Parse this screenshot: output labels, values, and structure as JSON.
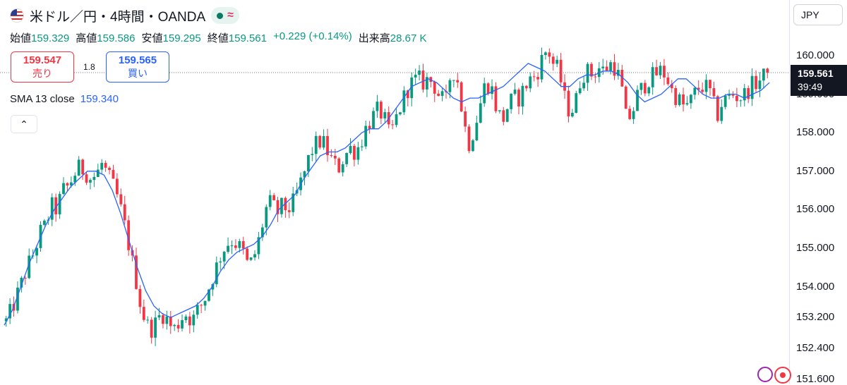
{
  "header": {
    "title": "米ドル／円・4時間・OANDA",
    "flag_icon": "us-flag-icon",
    "market_status_icon": "market-open-dot-icon",
    "approx_icon": "approximation-icon"
  },
  "ohlc": {
    "open_label": "始値",
    "open": "159.329",
    "high_label": "高値",
    "high": "159.586",
    "low_label": "安値",
    "low": "159.295",
    "close_label": "終値",
    "close": "159.561",
    "change": "+0.229 (+0.14%)",
    "volume_label": "出来高",
    "volume": "28.67 K"
  },
  "trade": {
    "sell_price": "159.547",
    "sell_label": "売り",
    "spread": "1.8",
    "buy_price": "159.565",
    "buy_label": "買い"
  },
  "indicator": {
    "label": "SMA 13 close",
    "value": "159.340"
  },
  "collapse_icon": "⌃",
  "axis": {
    "currency": "JPY",
    "current_price": "159.561",
    "countdown": "39:49"
  },
  "colors": {
    "up": "#089981",
    "down": "#f23645",
    "sma": "#2962ff"
  },
  "chart_data": {
    "type": "candlestick",
    "y_ticks": [
      "160.000",
      "159.000",
      "158.000",
      "157.000",
      "156.000",
      "155.000",
      "154.000",
      "153.200",
      "152.400",
      "151.600"
    ],
    "ylim": [
      151.6,
      160.55
    ],
    "grid": false,
    "current_price": 159.561,
    "series": [
      {
        "values": [
          153.1,
          153.4,
          153.8,
          154.2,
          154.6,
          154.9,
          155.4,
          155.6,
          156.1,
          156.0,
          156.5,
          156.6,
          156.9,
          157.1,
          157.0,
          156.8,
          156.9,
          157.2,
          156.9,
          156.6,
          156.2,
          155.6,
          154.9,
          154.2,
          153.4,
          153.0,
          152.9,
          153.2,
          153.3,
          153.0,
          152.9,
          153.2,
          153.3,
          153.1,
          153.4,
          153.6,
          154.0,
          154.4,
          154.8,
          155.1,
          155.2,
          155.1,
          154.9,
          154.5,
          154.8,
          155.3,
          156.0,
          156.2,
          155.9,
          156.1,
          156.0,
          156.2,
          156.6,
          157.0,
          157.5,
          157.7,
          157.8,
          157.5,
          157.2,
          157.1,
          157.4,
          157.6,
          157.5,
          157.8,
          158.2,
          158.4,
          158.6,
          158.4,
          157.9,
          158.3,
          158.7,
          159.1,
          159.3,
          159.4,
          159.3,
          159.4,
          159.2,
          158.9,
          158.8,
          159.7,
          159.4,
          158.4,
          157.7,
          158.1,
          158.7,
          159.3,
          159.2,
          158.6,
          158.3,
          158.7,
          158.9,
          158.9,
          159.2,
          159.4,
          159.5,
          159.9,
          160.2,
          159.8,
          159.6,
          158.9,
          158.5,
          158.8,
          159.5,
          159.6,
          159.5,
          159.7,
          159.6,
          159.8,
          159.7,
          159.3,
          158.3,
          158.5,
          159.0,
          159.2,
          159.4,
          159.5,
          159.6,
          159.5,
          159.1,
          158.9,
          158.7,
          158.7,
          159.0,
          159.2,
          159.2,
          159.0,
          158.4,
          158.8,
          158.9,
          159.0,
          158.9,
          159.0,
          159.2,
          159.3,
          159.4,
          159.56
        ]
      },
      {
        "name": "SMA 13 close",
        "values": [
          153.0,
          153.4,
          154.0,
          154.6,
          155.1,
          155.6,
          156.0,
          156.3,
          156.6,
          156.8,
          157.0,
          157.0,
          156.9,
          156.5,
          155.9,
          155.2,
          154.5,
          153.9,
          153.5,
          153.3,
          153.2,
          153.3,
          153.4,
          153.5,
          153.7,
          154.0,
          154.4,
          154.7,
          154.9,
          155.0,
          155.1,
          155.3,
          155.6,
          156.0,
          156.2,
          156.4,
          156.8,
          157.1,
          157.4,
          157.5,
          157.5,
          157.6,
          157.8,
          158.0,
          158.1,
          158.1,
          158.3,
          158.6,
          158.9,
          159.2,
          159.3,
          159.4,
          159.3,
          159.1,
          158.9,
          158.8,
          158.9,
          158.9,
          159.0,
          159.1,
          159.2,
          159.4,
          159.6,
          159.8,
          159.7,
          159.6,
          159.4,
          159.2,
          159.2,
          159.4,
          159.5,
          159.5,
          159.6,
          159.6,
          159.5,
          159.3,
          159.0,
          158.8,
          158.9,
          159.0,
          159.2,
          159.4,
          159.4,
          159.2,
          159.0,
          158.9,
          158.9,
          159.0,
          159.0,
          158.9,
          159.0,
          159.1,
          159.3
        ]
      }
    ]
  }
}
